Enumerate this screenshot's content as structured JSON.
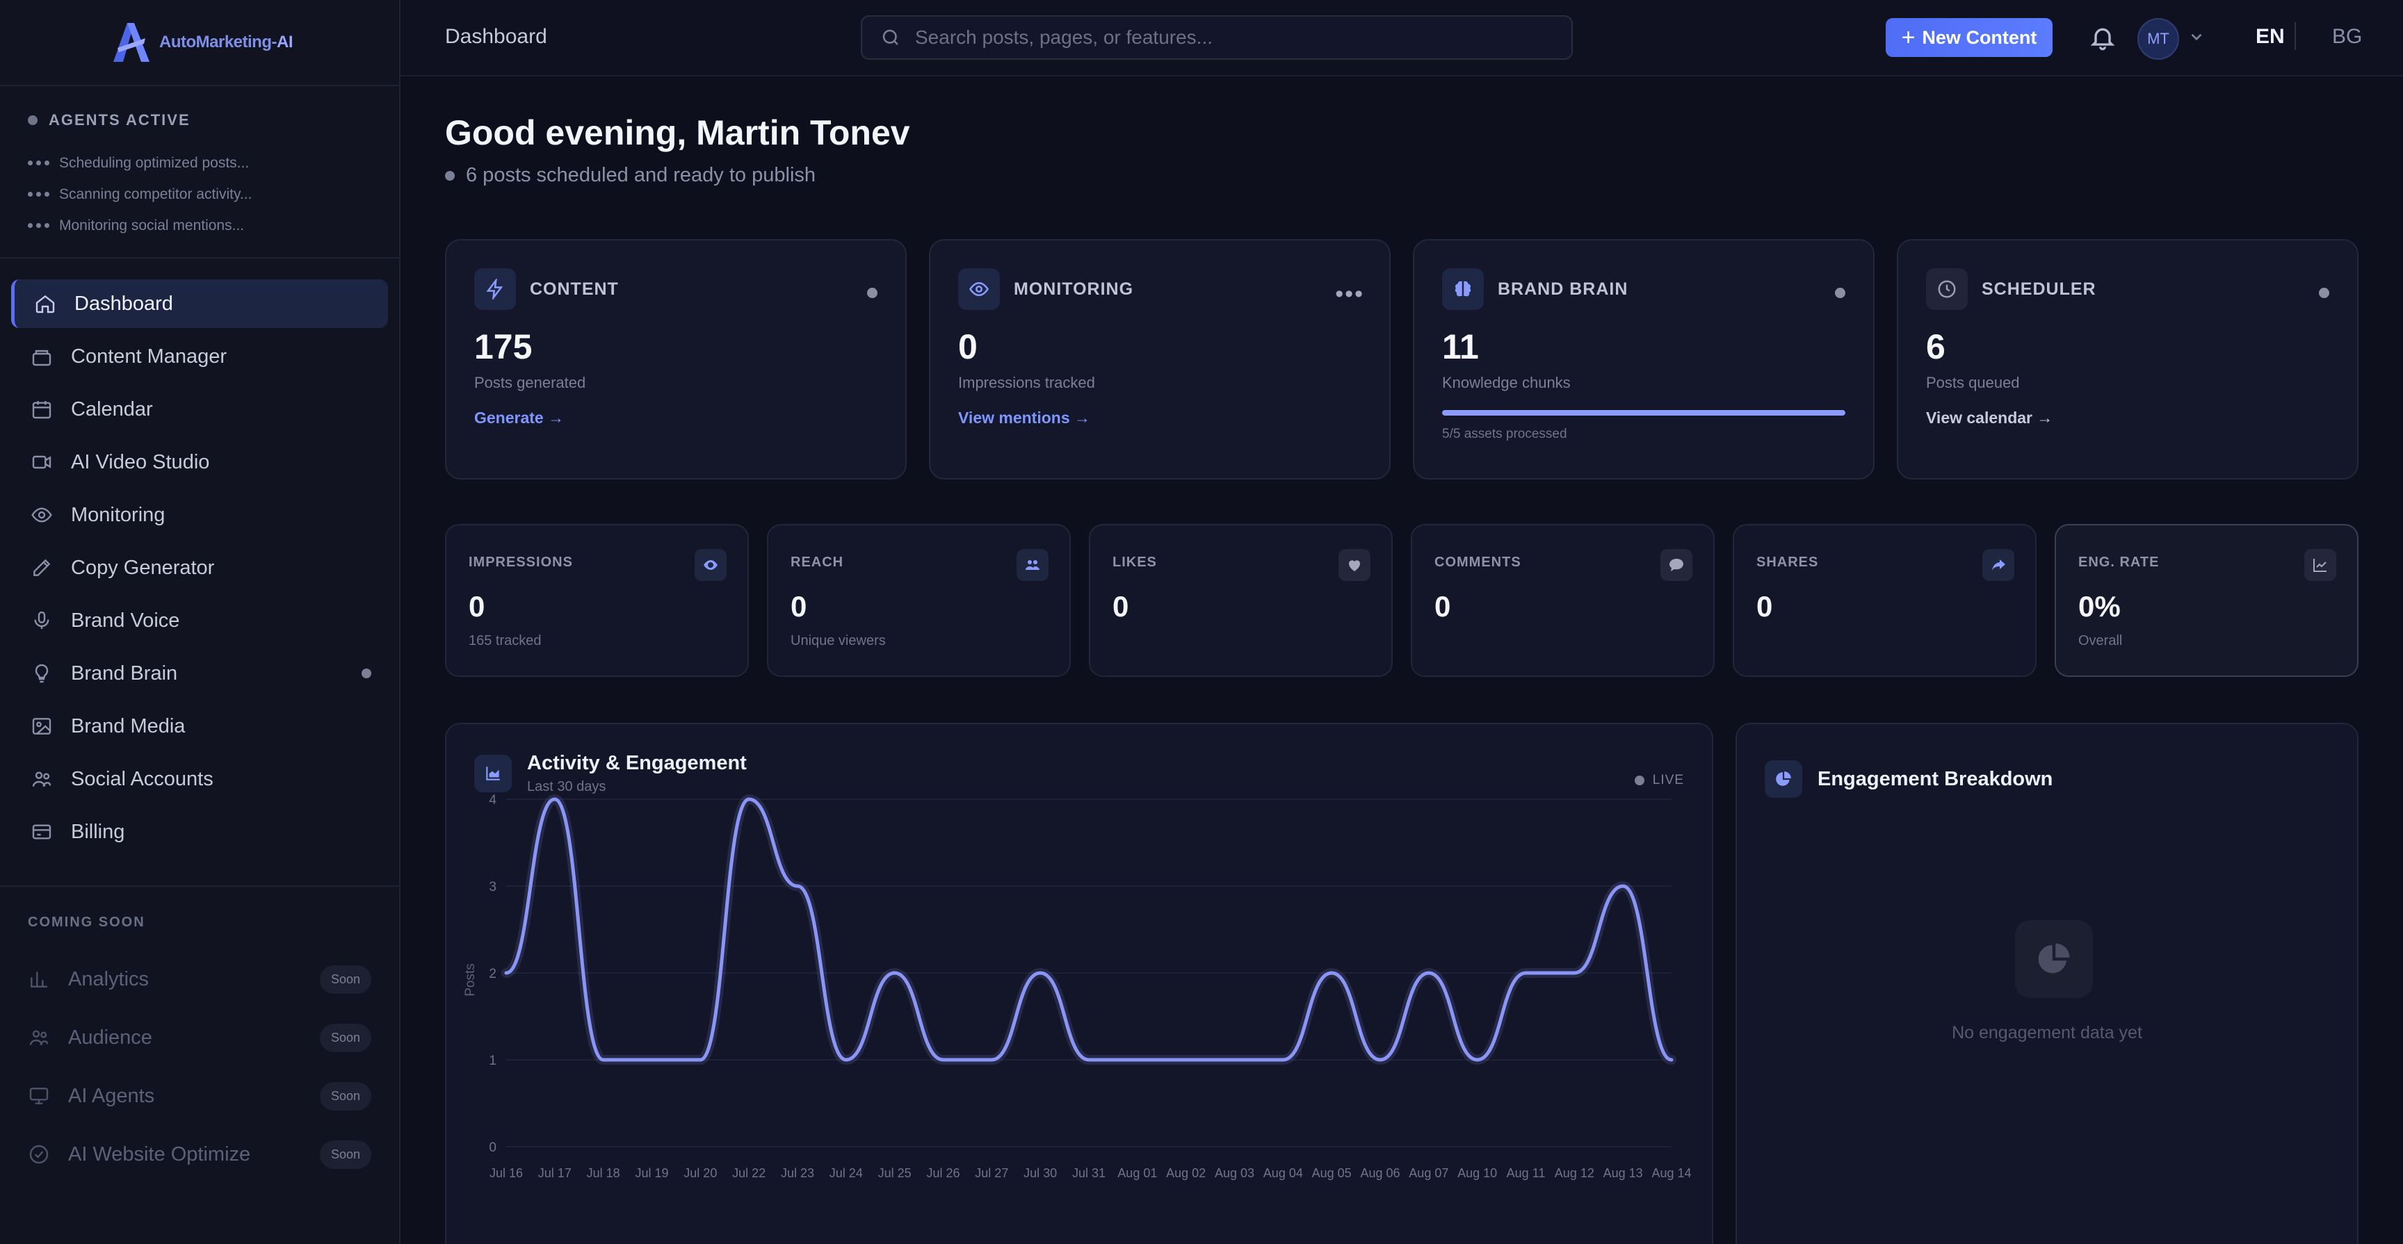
{
  "brand": {
    "name_prefix": "AutoMarketing-",
    "name_suffix": "AI"
  },
  "agents": {
    "heading": "AGENTS ACTIVE",
    "items": [
      "Scheduling optimized posts...",
      "Scanning competitor activity...",
      "Monitoring social mentions..."
    ]
  },
  "nav": {
    "items": [
      {
        "label": "Dashboard",
        "icon": "home-icon"
      },
      {
        "label": "Content Manager",
        "icon": "layers-icon"
      },
      {
        "label": "Calendar",
        "icon": "calendar-icon"
      },
      {
        "label": "AI Video Studio",
        "icon": "video-icon"
      },
      {
        "label": "Monitoring",
        "icon": "eye-icon"
      },
      {
        "label": "Copy Generator",
        "icon": "edit-icon"
      },
      {
        "label": "Brand Voice",
        "icon": "mic-icon"
      },
      {
        "label": "Brand Brain",
        "icon": "bulb-icon"
      },
      {
        "label": "Brand Media",
        "icon": "image-icon"
      },
      {
        "label": "Social Accounts",
        "icon": "users-icon"
      },
      {
        "label": "Billing",
        "icon": "card-icon"
      }
    ]
  },
  "coming_soon": {
    "heading": "COMING SOON",
    "badge": "Soon",
    "items": [
      {
        "label": "Analytics",
        "icon": "bar-chart-icon"
      },
      {
        "label": "Audience",
        "icon": "users-icon"
      },
      {
        "label": "AI Agents",
        "icon": "monitor-icon"
      },
      {
        "label": "AI Website Optimize",
        "icon": "check-circle-icon"
      }
    ]
  },
  "topbar": {
    "title": "Dashboard",
    "search_placeholder": "Search posts, pages, or features...",
    "new_content": "New Content",
    "avatar_initials": "MT",
    "lang_active": "EN",
    "lang_other": "BG"
  },
  "greeting": {
    "title": "Good evening, Martin Tonev",
    "subtitle": "6 posts scheduled and ready to publish"
  },
  "cards": {
    "content": {
      "label": "CONTENT",
      "value": "175",
      "sub": "Posts generated",
      "link": "Generate →",
      "icon": "lightning-icon"
    },
    "monitoring": {
      "label": "MONITORING",
      "value": "0",
      "sub": "Impressions tracked",
      "link": "View mentions →",
      "icon": "eye-icon"
    },
    "brand_brain": {
      "label": "BRAND BRAIN",
      "value": "11",
      "sub": "Knowledge chunks",
      "progress_text": "5/5 assets processed",
      "progress": 1.0,
      "icon": "brain-icon"
    },
    "scheduler": {
      "label": "SCHEDULER",
      "value": "6",
      "sub": "Posts queued",
      "link": "View calendar →",
      "icon": "clock-icon"
    }
  },
  "metrics": [
    {
      "label": "IMPRESSIONS",
      "value": "0",
      "sub": "165 tracked",
      "icon": "eye-icon"
    },
    {
      "label": "REACH",
      "value": "0",
      "sub": "Unique viewers",
      "icon": "users-icon"
    },
    {
      "label": "LIKES",
      "value": "0",
      "sub": "",
      "icon": "heart-icon"
    },
    {
      "label": "COMMENTS",
      "value": "0",
      "sub": "",
      "icon": "comment-icon"
    },
    {
      "label": "SHARES",
      "value": "0",
      "sub": "",
      "icon": "share-icon"
    },
    {
      "label": "ENG. RATE",
      "value": "0%",
      "sub": "Overall",
      "icon": "trend-icon"
    }
  ],
  "activity": {
    "title": "Activity & Engagement",
    "subtitle": "Last 30 days",
    "live": "LIVE"
  },
  "breakdown": {
    "title": "Engagement Breakdown",
    "empty": "No engagement data yet"
  },
  "chart_data": {
    "type": "line",
    "ylabel": "Posts",
    "ylim": [
      0,
      4
    ],
    "yticks": [
      "0",
      "1",
      "2",
      "3",
      "4"
    ],
    "categories": [
      "Jul 16",
      "Jul 17",
      "Jul 18",
      "Jul 19",
      "Jul 20",
      "Jul 22",
      "Jul 23",
      "Jul 24",
      "Jul 25",
      "Jul 26",
      "Jul 27",
      "Jul 30",
      "Jul 31",
      "Aug 01",
      "Aug 02",
      "Aug 03",
      "Aug 04",
      "Aug 05",
      "Aug 06",
      "Aug 07",
      "Aug 10",
      "Aug 11",
      "Aug 12",
      "Aug 13",
      "Aug 14"
    ],
    "values": [
      2,
      4,
      1,
      1,
      1,
      4,
      3,
      1,
      2,
      1,
      1,
      2,
      1,
      1,
      1,
      1,
      1,
      2,
      1,
      2,
      1,
      2,
      2,
      3,
      1
    ],
    "color": "#8a96f5"
  }
}
